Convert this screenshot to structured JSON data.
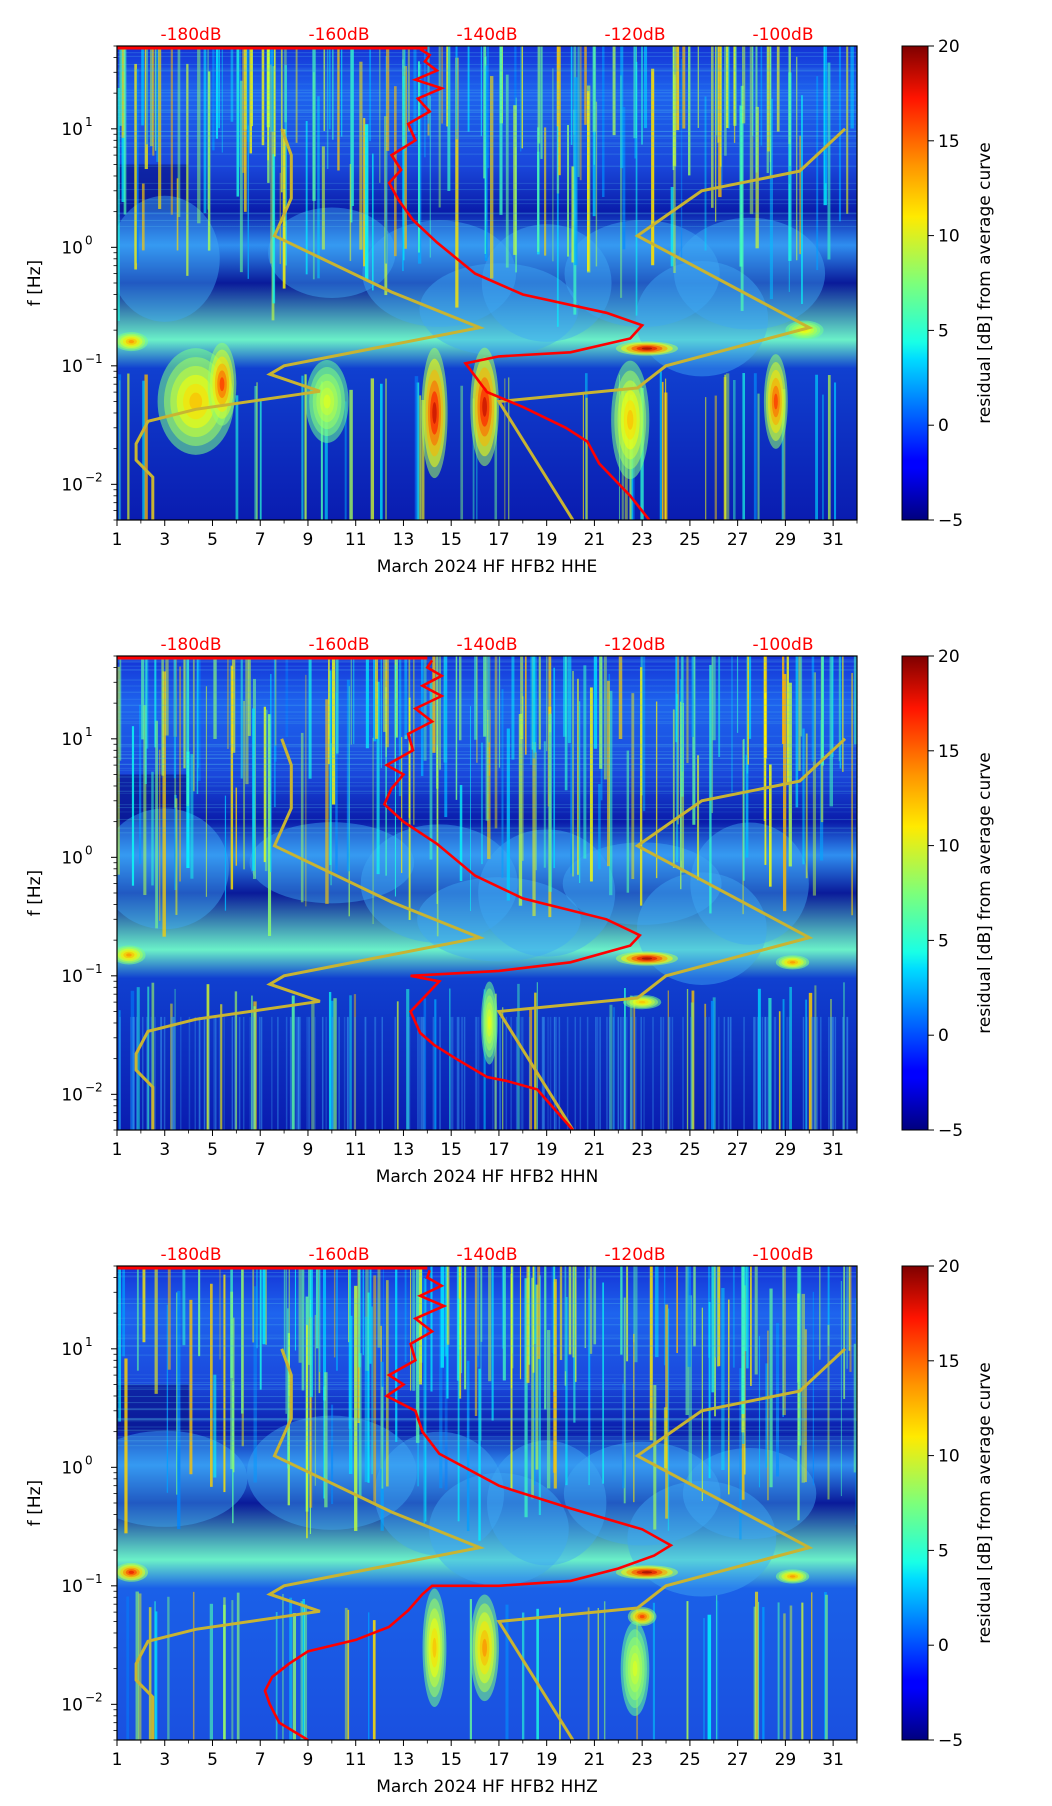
{
  "colors": {
    "psd_curve": "#ff0000",
    "model_curves": "#c8b432",
    "top_labels": "#ff0000"
  },
  "chart_data": [
    {
      "type": "heatmap",
      "xlabel": "March 2024 HF HFB2  HHE",
      "ylabel": "f [Hz]",
      "x_ticks": [
        "1",
        "3",
        "5",
        "7",
        "9",
        "11",
        "13",
        "15",
        "17",
        "19",
        "21",
        "23",
        "25",
        "27",
        "29",
        "31"
      ],
      "xlim": [
        1,
        32
      ],
      "ylim": [
        0.005,
        50
      ],
      "y_scale": "log",
      "y_ticks": [
        "10^-2",
        "10^-1",
        "10^0",
        "10^1"
      ],
      "top_ticks": [
        "-180dB",
        "-160dB",
        "-140dB",
        "-120dB",
        "-100dB"
      ],
      "top_axis_range": [
        -190,
        -90
      ],
      "colorbar": {
        "label": "residual [dB] from average curve",
        "range": [
          -5,
          20
        ],
        "ticks": [
          "−5",
          "0",
          "5",
          "10",
          "15",
          "20"
        ],
        "colormap": "jet"
      }
    },
    {
      "type": "heatmap",
      "xlabel": "March 2024 HF HFB2  HHN",
      "ylabel": "f [Hz]",
      "x_ticks": [
        "1",
        "3",
        "5",
        "7",
        "9",
        "11",
        "13",
        "15",
        "17",
        "19",
        "21",
        "23",
        "25",
        "27",
        "29",
        "31"
      ],
      "xlim": [
        1,
        32
      ],
      "ylim": [
        0.005,
        50
      ],
      "y_scale": "log",
      "y_ticks": [
        "10^-2",
        "10^-1",
        "10^0",
        "10^1"
      ],
      "top_ticks": [
        "-180dB",
        "-160dB",
        "-140dB",
        "-120dB",
        "-100dB"
      ],
      "top_axis_range": [
        -190,
        -90
      ],
      "colorbar": {
        "label": "residual [dB] from average curve",
        "range": [
          -5,
          20
        ],
        "ticks": [
          "−5",
          "0",
          "5",
          "10",
          "15",
          "20"
        ],
        "colormap": "jet"
      }
    },
    {
      "type": "heatmap",
      "xlabel": "March 2024 HF HFB2  HHZ",
      "ylabel": "f [Hz]",
      "x_ticks": [
        "1",
        "3",
        "5",
        "7",
        "9",
        "11",
        "13",
        "15",
        "17",
        "19",
        "21",
        "23",
        "25",
        "27",
        "29",
        "31"
      ],
      "xlim": [
        1,
        32
      ],
      "ylim": [
        0.005,
        50
      ],
      "y_scale": "log",
      "y_ticks": [
        "10^-2",
        "10^-1",
        "10^0",
        "10^1"
      ],
      "top_ticks": [
        "-180dB",
        "-160dB",
        "-140dB",
        "-120dB",
        "-100dB"
      ],
      "top_axis_range": [
        -190,
        -90
      ],
      "colorbar": {
        "label": "residual [dB] from average curve",
        "range": [
          -5,
          20
        ],
        "ticks": [
          "−5",
          "0",
          "5",
          "10",
          "15",
          "20"
        ],
        "colormap": "jet"
      }
    }
  ]
}
